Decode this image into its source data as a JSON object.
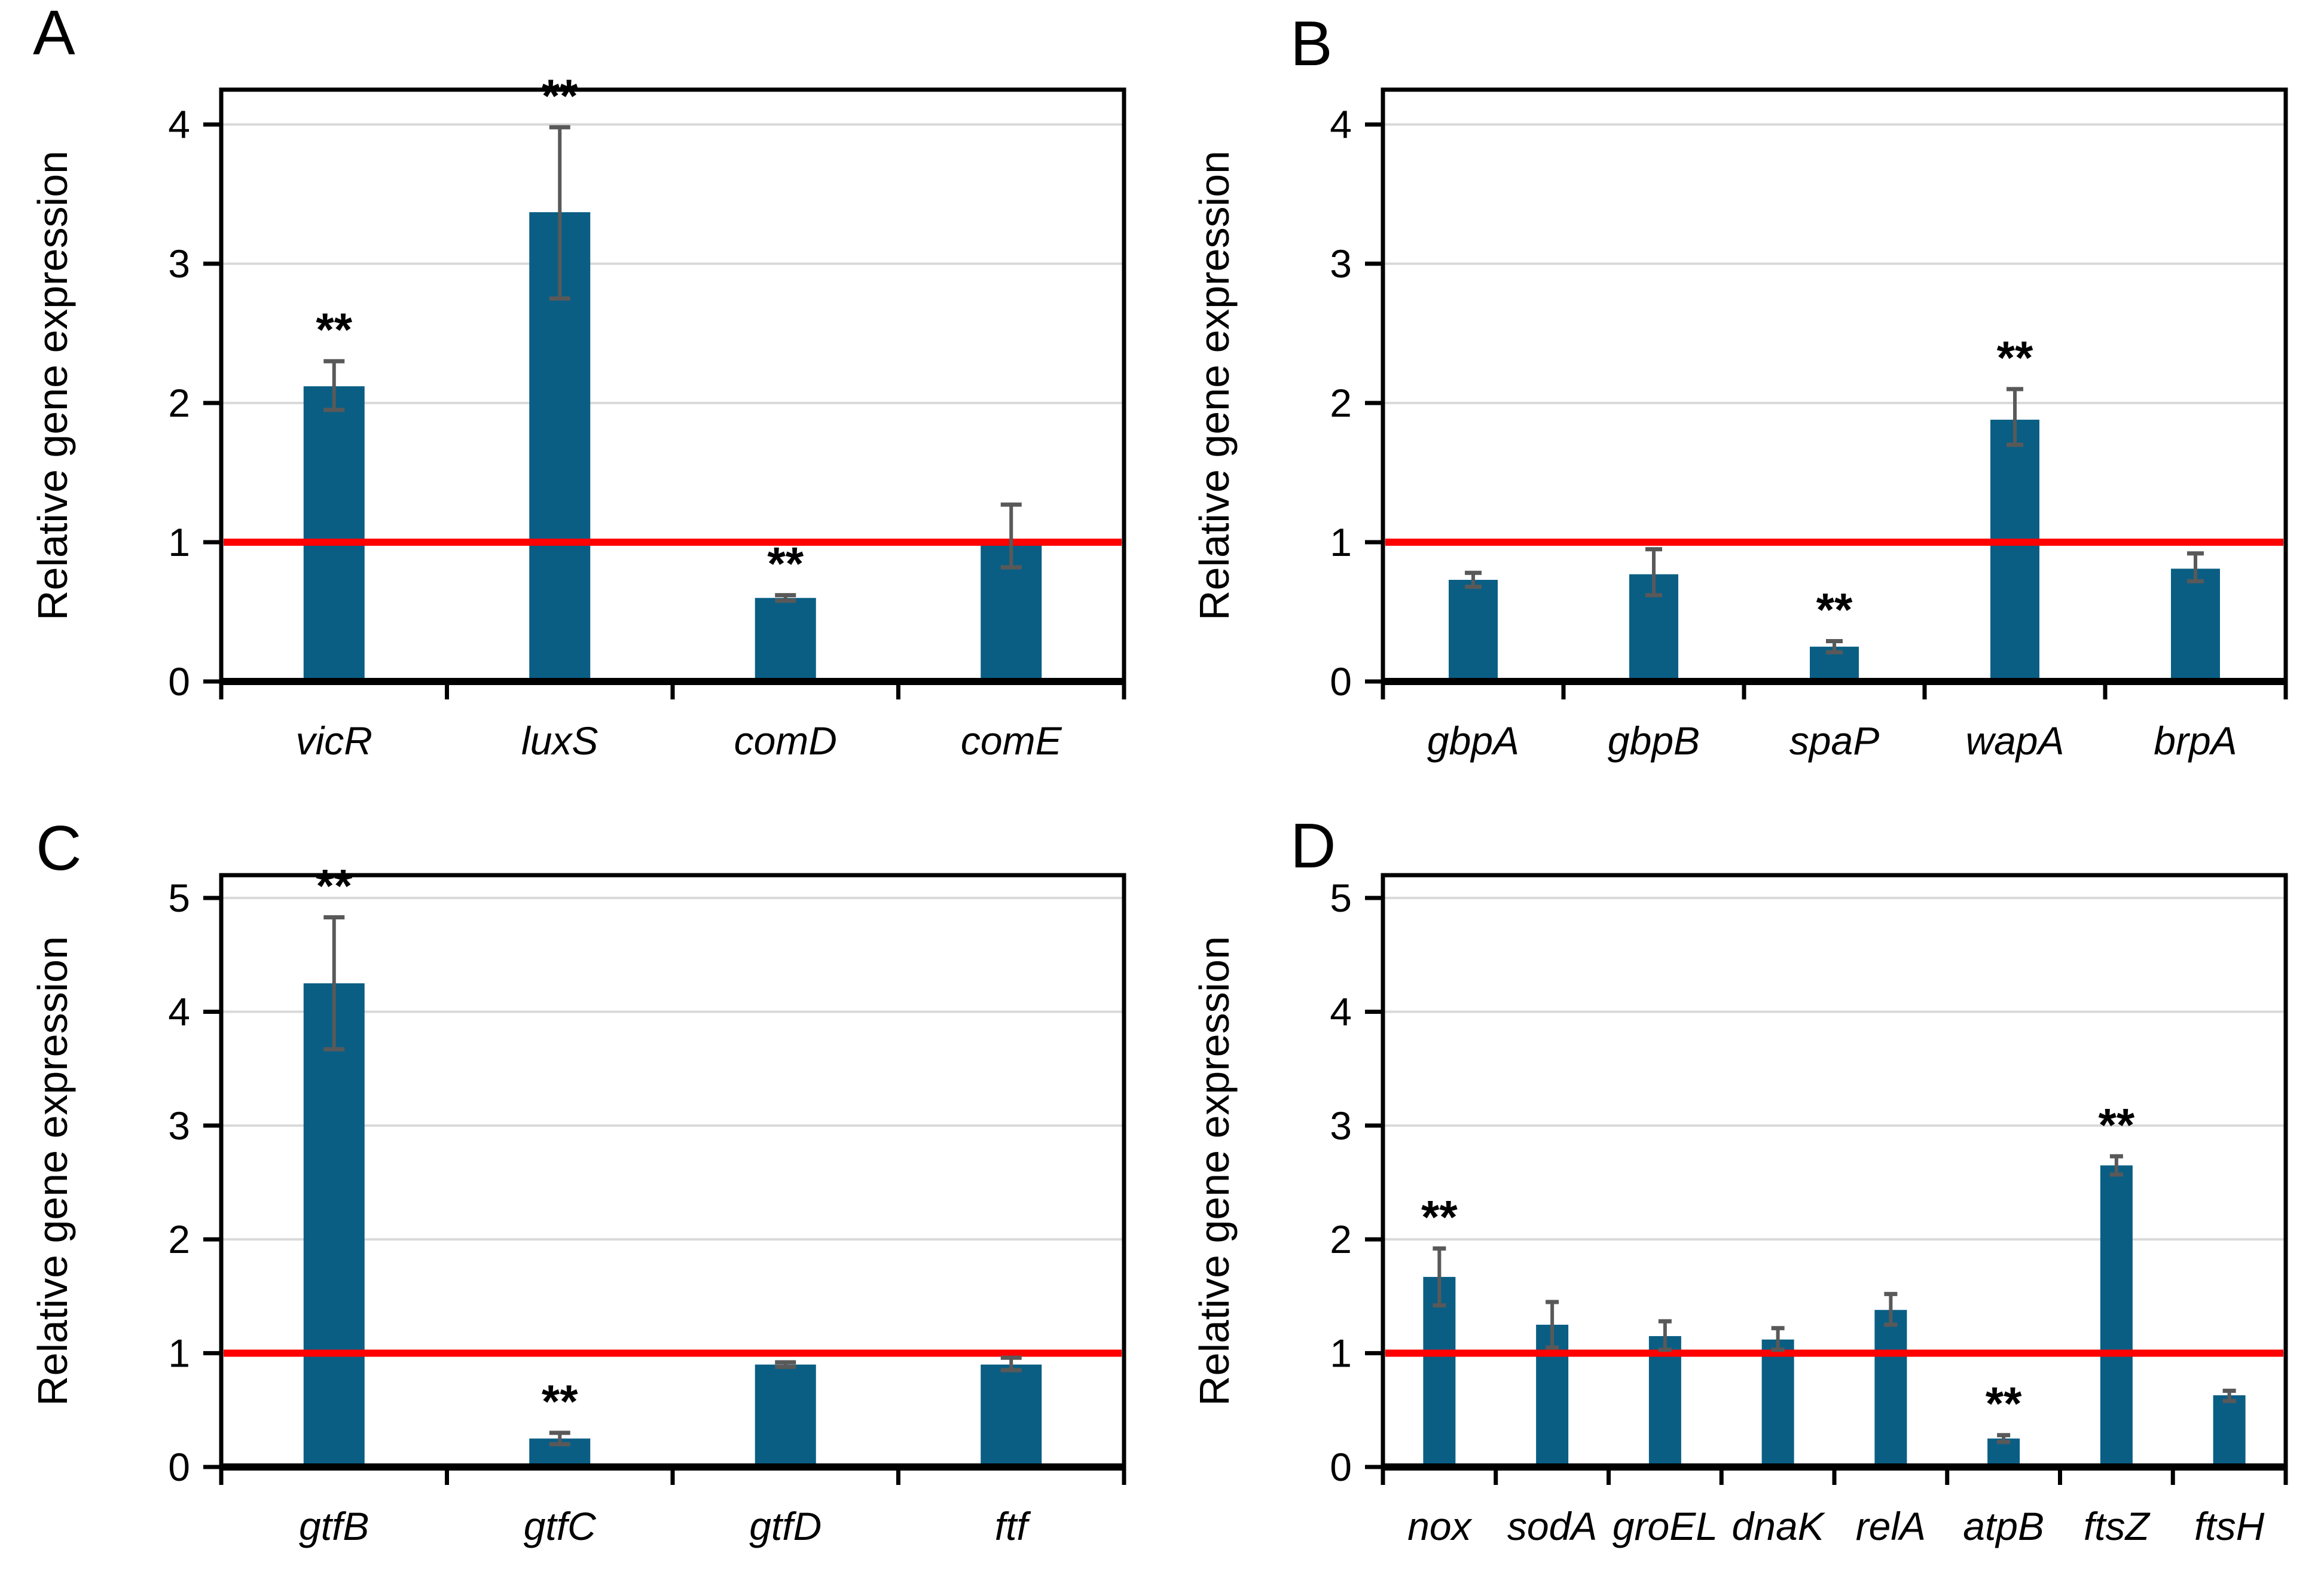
{
  "figure": {
    "kind": "four-panel bar figure",
    "baseline_value": 1,
    "colors": {
      "bar": "#0a5e84",
      "error": "#595959",
      "baseline_line": "#fe0202",
      "grid": "#d9d9d9",
      "frame": "#000000",
      "text": "#000000",
      "background": "#ffffff"
    }
  },
  "chart_data": [
    {
      "panel": "A",
      "type": "bar",
      "title": "",
      "xlabel": "",
      "ylabel": "Relative gene expression",
      "ylim": [
        0,
        4
      ],
      "frame_top": 4.25,
      "yticks": [
        0,
        1,
        2,
        3,
        4
      ],
      "grid": true,
      "legend": false,
      "baseline": 1,
      "categories": [
        "vicR",
        "luxS",
        "comD",
        "comE"
      ],
      "values": [
        2.12,
        3.37,
        0.6,
        1.02
      ],
      "err_low": [
        0.17,
        0.62,
        0.02,
        0.2
      ],
      "err_high": [
        0.18,
        0.61,
        0.02,
        0.25
      ],
      "sig": [
        "**",
        "**",
        "**",
        ""
      ]
    },
    {
      "panel": "B",
      "type": "bar",
      "title": "",
      "xlabel": "",
      "ylabel": "Relative gene expression",
      "ylim": [
        0,
        4
      ],
      "frame_top": 4.25,
      "yticks": [
        0,
        1,
        2,
        3,
        4
      ],
      "grid": true,
      "legend": false,
      "baseline": 1,
      "categories": [
        "gbpA",
        "gbpB",
        "spaP",
        "wapA",
        "brpA"
      ],
      "values": [
        0.73,
        0.77,
        0.25,
        1.88,
        0.81
      ],
      "err_low": [
        0.05,
        0.15,
        0.04,
        0.18,
        0.09
      ],
      "err_high": [
        0.05,
        0.18,
        0.04,
        0.22,
        0.11
      ],
      "sig": [
        "",
        "",
        "**",
        "**",
        ""
      ]
    },
    {
      "panel": "C",
      "type": "bar",
      "title": "",
      "xlabel": "",
      "ylabel": "Relative gene expression",
      "ylim": [
        0,
        5
      ],
      "frame_top": 5.2,
      "yticks": [
        0,
        1,
        2,
        3,
        4,
        5
      ],
      "grid": true,
      "legend": false,
      "baseline": 1,
      "categories": [
        "gtfB",
        "gtfC",
        "gtfD",
        "ftf"
      ],
      "values": [
        4.25,
        0.25,
        0.9,
        0.9
      ],
      "err_low": [
        0.58,
        0.05,
        0.02,
        0.05
      ],
      "err_high": [
        0.58,
        0.05,
        0.02,
        0.06
      ],
      "sig": [
        "**",
        "**",
        "",
        ""
      ]
    },
    {
      "panel": "D",
      "type": "bar",
      "title": "",
      "xlabel": "",
      "ylabel": "Relative gene expression",
      "ylim": [
        0,
        5
      ],
      "frame_top": 5.2,
      "yticks": [
        0,
        1,
        2,
        3,
        4,
        5
      ],
      "grid": true,
      "legend": false,
      "baseline": 1,
      "categories": [
        "nox",
        "sodA",
        "groEL",
        "dnaK",
        "relA",
        "atpB",
        "ftsZ",
        "ftsH"
      ],
      "values": [
        1.67,
        1.25,
        1.15,
        1.12,
        1.38,
        0.25,
        2.65,
        0.63
      ],
      "err_low": [
        0.25,
        0.2,
        0.12,
        0.09,
        0.13,
        0.03,
        0.08,
        0.05
      ],
      "err_high": [
        0.25,
        0.2,
        0.13,
        0.1,
        0.14,
        0.03,
        0.08,
        0.04
      ],
      "sig": [
        "**",
        "",
        "",
        "",
        "",
        "**",
        "**",
        ""
      ]
    }
  ]
}
